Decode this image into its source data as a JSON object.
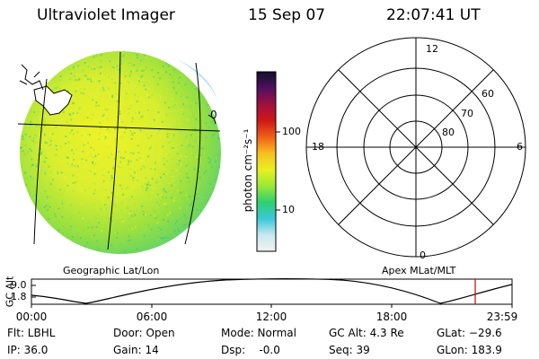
{
  "header": {
    "title": "Ultraviolet Imager",
    "date": "15 Sep 07",
    "time": "22:07:41 UT"
  },
  "colorbar": {
    "unit_label": "photon cm⁻²s⁻¹",
    "tick_100": "100",
    "tick_10": "10",
    "stops": [
      "#f2f2f2",
      "#c8e8f0",
      "#38c8d8",
      "#30d070",
      "#9ae838",
      "#e8f020",
      "#f8c020",
      "#f06018",
      "#d01818",
      "#a01040",
      "#501060",
      "#101028"
    ]
  },
  "geo_panel": {
    "label": "Geographic Lat/Lon",
    "marker": "0"
  },
  "polar_plot": {
    "label": "Apex MLat/MLT",
    "mlt_top": "12",
    "mlt_left": "18",
    "mlt_right": "6",
    "mlt_bottom": "0",
    "lat_60": "60",
    "lat_70": "70",
    "lat_80": "80"
  },
  "alt_plot": {
    "ylabel": "GC Alt",
    "ymax": "9.0",
    "ymin": "1.8",
    "x_ticks": [
      "00:00",
      "06:00",
      "12:00",
      "18:00",
      "23:59"
    ],
    "marker_color": "#cc0000"
  },
  "status": {
    "flt": "Flt: LBHL",
    "ip": "IP: 36.0",
    "door": "Door: Open",
    "gain": "Gain: 14",
    "mode": "Mode: Normal",
    "dsp": "Dsp:    -0.0",
    "gc_alt": "GC Alt: 4.3 Re",
    "seq": "Seq: 39",
    "glat": "GLat: −29.6",
    "glon": "GLon: 183.9"
  }
}
